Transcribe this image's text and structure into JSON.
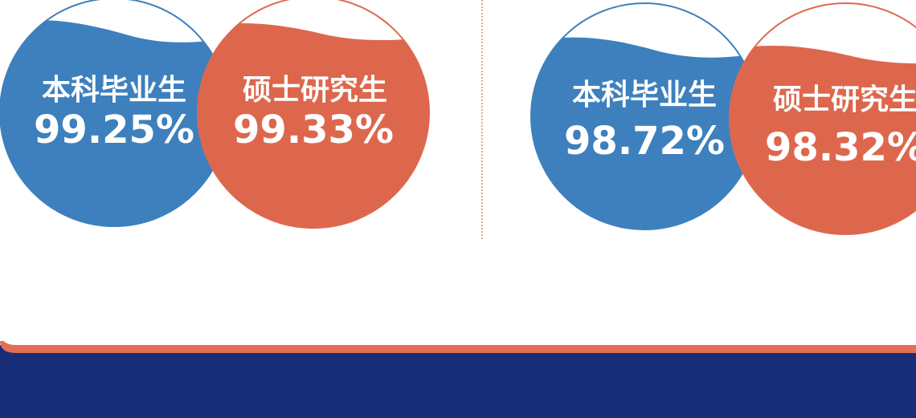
{
  "panels": [
    {
      "items": [
        {
          "label": "本科毕业生",
          "value": "99.25%"
        },
        {
          "label": "硕士研究生",
          "value": "99.33%"
        }
      ]
    },
    {
      "items": [
        {
          "label": "本科毕业生",
          "value": "98.72%"
        },
        {
          "label": "硕士研究生",
          "value": "98.32%"
        }
      ]
    }
  ]
}
